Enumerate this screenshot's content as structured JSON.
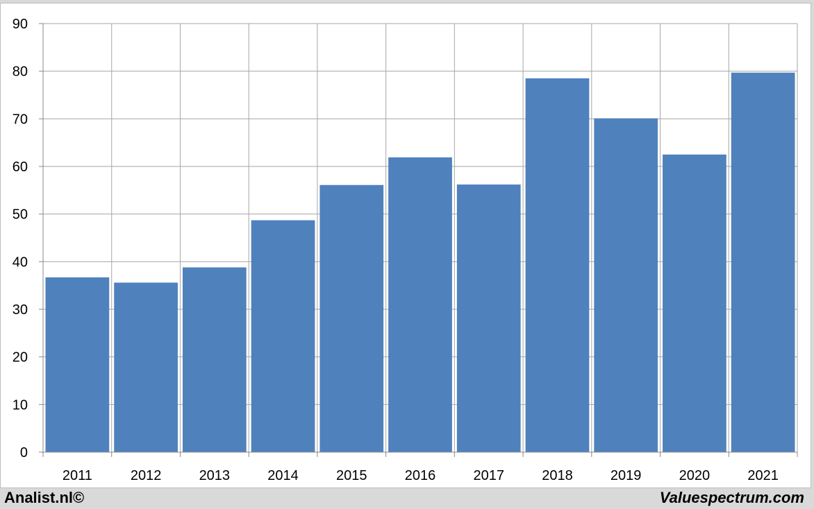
{
  "chart_data": {
    "type": "bar",
    "categories": [
      "2011",
      "2012",
      "2013",
      "2014",
      "2015",
      "2016",
      "2017",
      "2018",
      "2019",
      "2020",
      "2021"
    ],
    "values": [
      36.7,
      35.6,
      38.8,
      48.7,
      56.1,
      61.9,
      56.2,
      78.5,
      70.1,
      62.5,
      79.7
    ],
    "ylim": [
      0,
      90
    ],
    "yticks": [
      0,
      10,
      20,
      30,
      40,
      50,
      60,
      70,
      80,
      90
    ],
    "grid": true,
    "bar_color": "#4f81bd",
    "grid_color": "#a6a6a6"
  },
  "footer": {
    "left": "Analist.nl©",
    "right": "Valuespectrum.com"
  }
}
